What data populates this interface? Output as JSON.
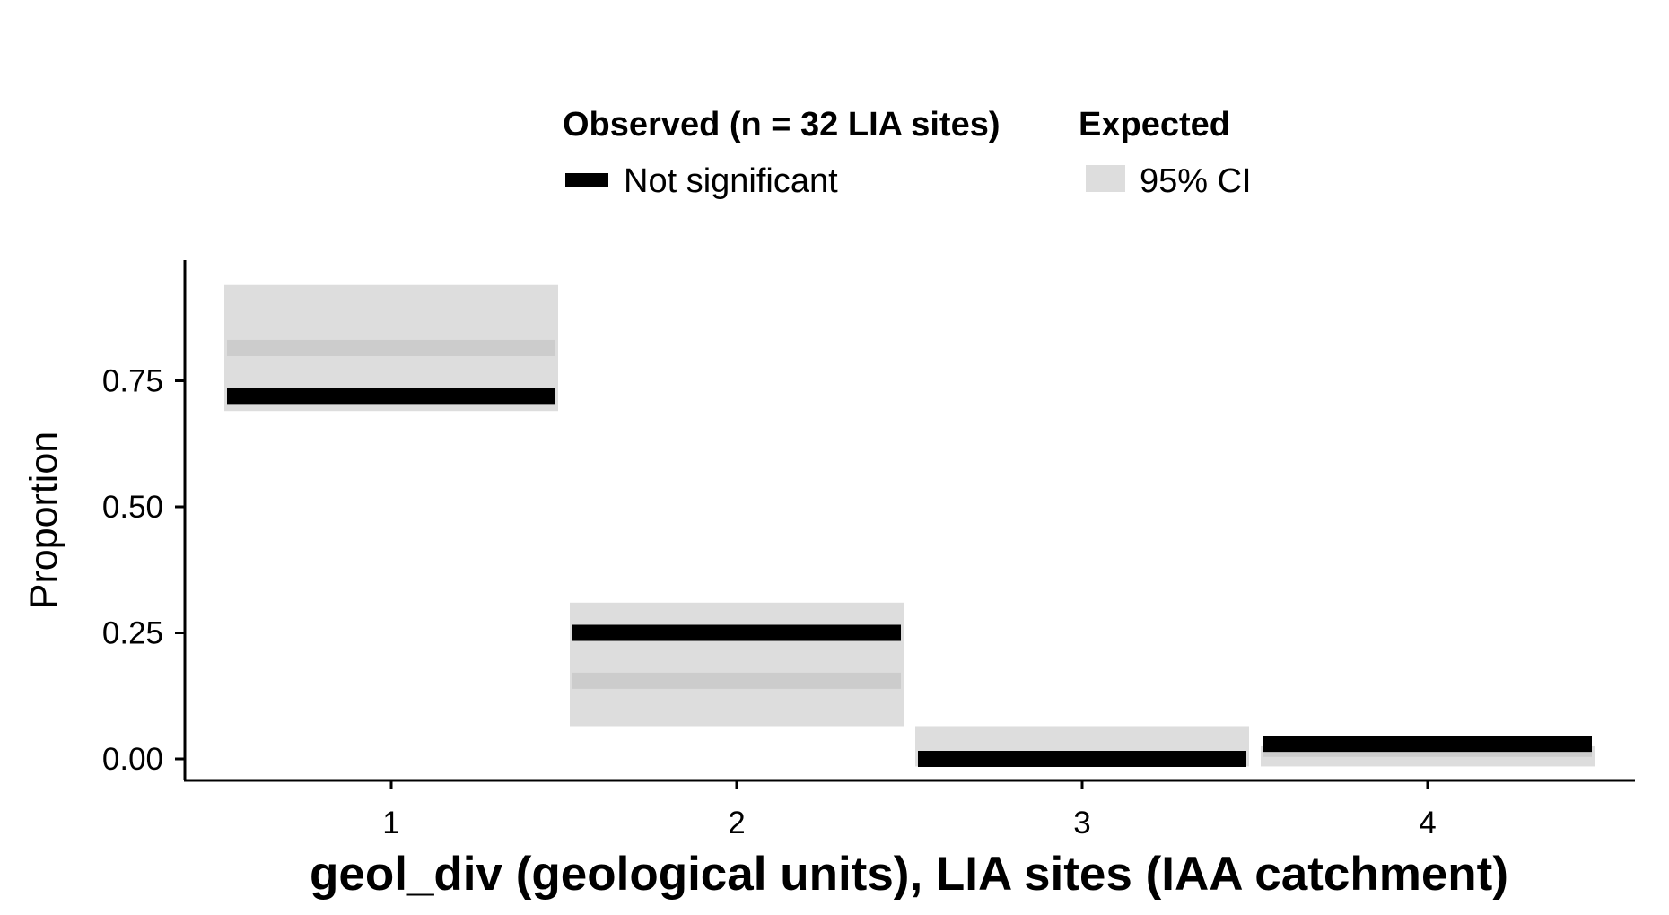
{
  "chart_data": {
    "type": "crossbar",
    "xlabel": "geol_div (geological units), LIA sites (IAA catchment)",
    "ylabel": "Proportion",
    "categories": [
      "1",
      "2",
      "3",
      "4"
    ],
    "yticks": [
      "0.00",
      "0.25",
      "0.50",
      "0.75"
    ],
    "ylim": [
      -0.045,
      0.985
    ],
    "observed": [
      0.72,
      0.25,
      0.0,
      0.03
    ],
    "expected_mean": [
      0.815,
      0.155,
      0.0,
      0.02
    ],
    "expected_ci": [
      [
        0.69,
        0.94
      ],
      [
        0.065,
        0.31
      ],
      [
        -0.015,
        0.065
      ],
      [
        -0.015,
        0.025
      ]
    ],
    "legend": {
      "observed_title": "Observed (n = 32 LIA sites)",
      "observed_label": "Not significant",
      "expected_title": "Expected",
      "expected_label": "95% CI"
    },
    "colors": {
      "observed": "#000000",
      "ci_band": "#dddddd",
      "expected_mean": "#cccccc"
    },
    "grid": false
  }
}
